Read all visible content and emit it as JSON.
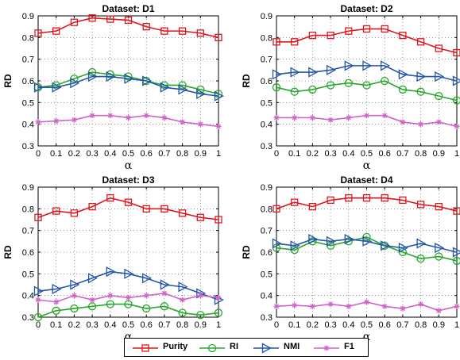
{
  "figure": {
    "colors": {
      "Purity": "#e0161e",
      "RI": "#27a82b",
      "NMI": "#2456a8",
      "F1": "#d163c8"
    },
    "markers": {
      "Purity": "square",
      "RI": "circle",
      "NMI": "triangle-right",
      "F1": "star"
    },
    "legend": [
      "Purity",
      "RI",
      "NMI",
      "F1"
    ]
  },
  "chart_data": [
    {
      "type": "line",
      "title": "Dataset: D1",
      "xlabel": "α",
      "ylabel": "RD",
      "x": [
        0,
        0.1,
        0.2,
        0.3,
        0.4,
        0.5,
        0.6,
        0.7,
        0.8,
        0.9,
        1
      ],
      "xticks": [
        "0",
        "0.1",
        "0.2",
        "0.3",
        "0.4",
        "0.5",
        "0.6",
        "0.7",
        "0.8",
        "0.9",
        "1"
      ],
      "yticks": [
        "0.3",
        "0.4",
        "0.5",
        "0.6",
        "0.7",
        "0.8",
        "0.9"
      ],
      "ylim": [
        0.3,
        0.9
      ],
      "xlim": [
        0,
        1
      ],
      "grid": true,
      "series": [
        {
          "name": "Purity",
          "values": [
            0.82,
            0.83,
            0.87,
            0.89,
            0.885,
            0.88,
            0.85,
            0.83,
            0.83,
            0.82,
            0.8
          ]
        },
        {
          "name": "RI",
          "values": [
            0.57,
            0.58,
            0.61,
            0.64,
            0.63,
            0.62,
            0.6,
            0.58,
            0.58,
            0.56,
            0.54
          ]
        },
        {
          "name": "NMI",
          "values": [
            0.57,
            0.57,
            0.59,
            0.62,
            0.62,
            0.61,
            0.6,
            0.57,
            0.56,
            0.54,
            0.53
          ]
        },
        {
          "name": "F1",
          "values": [
            0.41,
            0.415,
            0.42,
            0.44,
            0.44,
            0.43,
            0.44,
            0.43,
            0.41,
            0.4,
            0.39
          ]
        }
      ]
    },
    {
      "type": "line",
      "title": "Dataset: D2",
      "xlabel": "α",
      "ylabel": "RD",
      "x": [
        0,
        0.1,
        0.2,
        0.3,
        0.4,
        0.5,
        0.6,
        0.7,
        0.8,
        0.9,
        1
      ],
      "xticks": [
        "0",
        "0.1",
        "0.2",
        "0.3",
        "0.4",
        "0.5",
        "0.6",
        "0.7",
        "0.8",
        "0.9",
        "1"
      ],
      "yticks": [
        "0.3",
        "0.4",
        "0.5",
        "0.6",
        "0.7",
        "0.8",
        "0.9"
      ],
      "ylim": [
        0.3,
        0.9
      ],
      "xlim": [
        0,
        1
      ],
      "grid": true,
      "series": [
        {
          "name": "Purity",
          "values": [
            0.78,
            0.78,
            0.81,
            0.81,
            0.83,
            0.84,
            0.84,
            0.81,
            0.78,
            0.75,
            0.73
          ]
        },
        {
          "name": "RI",
          "values": [
            0.57,
            0.55,
            0.56,
            0.58,
            0.59,
            0.58,
            0.6,
            0.56,
            0.55,
            0.53,
            0.51
          ]
        },
        {
          "name": "NMI",
          "values": [
            0.63,
            0.64,
            0.64,
            0.65,
            0.67,
            0.67,
            0.67,
            0.63,
            0.62,
            0.62,
            0.6
          ]
        },
        {
          "name": "F1",
          "values": [
            0.43,
            0.43,
            0.43,
            0.42,
            0.43,
            0.44,
            0.44,
            0.41,
            0.4,
            0.41,
            0.39
          ]
        }
      ]
    },
    {
      "type": "line",
      "title": "Dataset: D3",
      "xlabel": "α",
      "ylabel": "RD",
      "x": [
        0,
        0.1,
        0.2,
        0.3,
        0.4,
        0.5,
        0.6,
        0.7,
        0.8,
        0.9,
        1
      ],
      "xticks": [
        "0",
        "0.1",
        "0.2",
        "0.3",
        "0.4",
        "0.5",
        "0.6",
        "0.7",
        "0.8",
        "0.9",
        "1"
      ],
      "yticks": [
        "0.3",
        "0.4",
        "0.5",
        "0.6",
        "0.7",
        "0.8",
        "0.9"
      ],
      "ylim": [
        0.3,
        0.9
      ],
      "xlim": [
        0,
        1
      ],
      "grid": true,
      "series": [
        {
          "name": "Purity",
          "values": [
            0.76,
            0.79,
            0.78,
            0.81,
            0.85,
            0.83,
            0.8,
            0.8,
            0.78,
            0.76,
            0.75
          ]
        },
        {
          "name": "RI",
          "values": [
            0.3,
            0.33,
            0.34,
            0.35,
            0.36,
            0.36,
            0.34,
            0.35,
            0.32,
            0.31,
            0.32
          ]
        },
        {
          "name": "NMI",
          "values": [
            0.42,
            0.43,
            0.45,
            0.48,
            0.51,
            0.5,
            0.48,
            0.45,
            0.44,
            0.41,
            0.38
          ]
        },
        {
          "name": "F1",
          "values": [
            0.38,
            0.37,
            0.4,
            0.38,
            0.4,
            0.39,
            0.4,
            0.41,
            0.38,
            0.4,
            0.39
          ]
        }
      ]
    },
    {
      "type": "line",
      "title": "Dataset: D4",
      "xlabel": "α",
      "ylabel": "RD",
      "x": [
        0,
        0.1,
        0.2,
        0.3,
        0.4,
        0.5,
        0.6,
        0.7,
        0.8,
        0.9,
        1
      ],
      "xticks": [
        "0",
        "0.1",
        "0.2",
        "0.3",
        "0.4",
        "0.5",
        "0.6",
        "0.7",
        "0.8",
        "0.9",
        "1"
      ],
      "yticks": [
        "0.3",
        "0.4",
        "0.5",
        "0.6",
        "0.7",
        "0.8",
        "0.9"
      ],
      "ylim": [
        0.3,
        0.9
      ],
      "xlim": [
        0,
        1
      ],
      "grid": true,
      "series": [
        {
          "name": "Purity",
          "values": [
            0.8,
            0.83,
            0.81,
            0.84,
            0.85,
            0.85,
            0.85,
            0.84,
            0.82,
            0.81,
            0.79
          ]
        },
        {
          "name": "RI",
          "values": [
            0.62,
            0.61,
            0.65,
            0.63,
            0.65,
            0.67,
            0.63,
            0.6,
            0.57,
            0.58,
            0.56
          ]
        },
        {
          "name": "NMI",
          "values": [
            0.64,
            0.63,
            0.66,
            0.65,
            0.66,
            0.65,
            0.63,
            0.62,
            0.64,
            0.62,
            0.6
          ]
        },
        {
          "name": "F1",
          "values": [
            0.35,
            0.355,
            0.35,
            0.36,
            0.35,
            0.37,
            0.35,
            0.34,
            0.36,
            0.33,
            0.35
          ]
        }
      ]
    }
  ]
}
